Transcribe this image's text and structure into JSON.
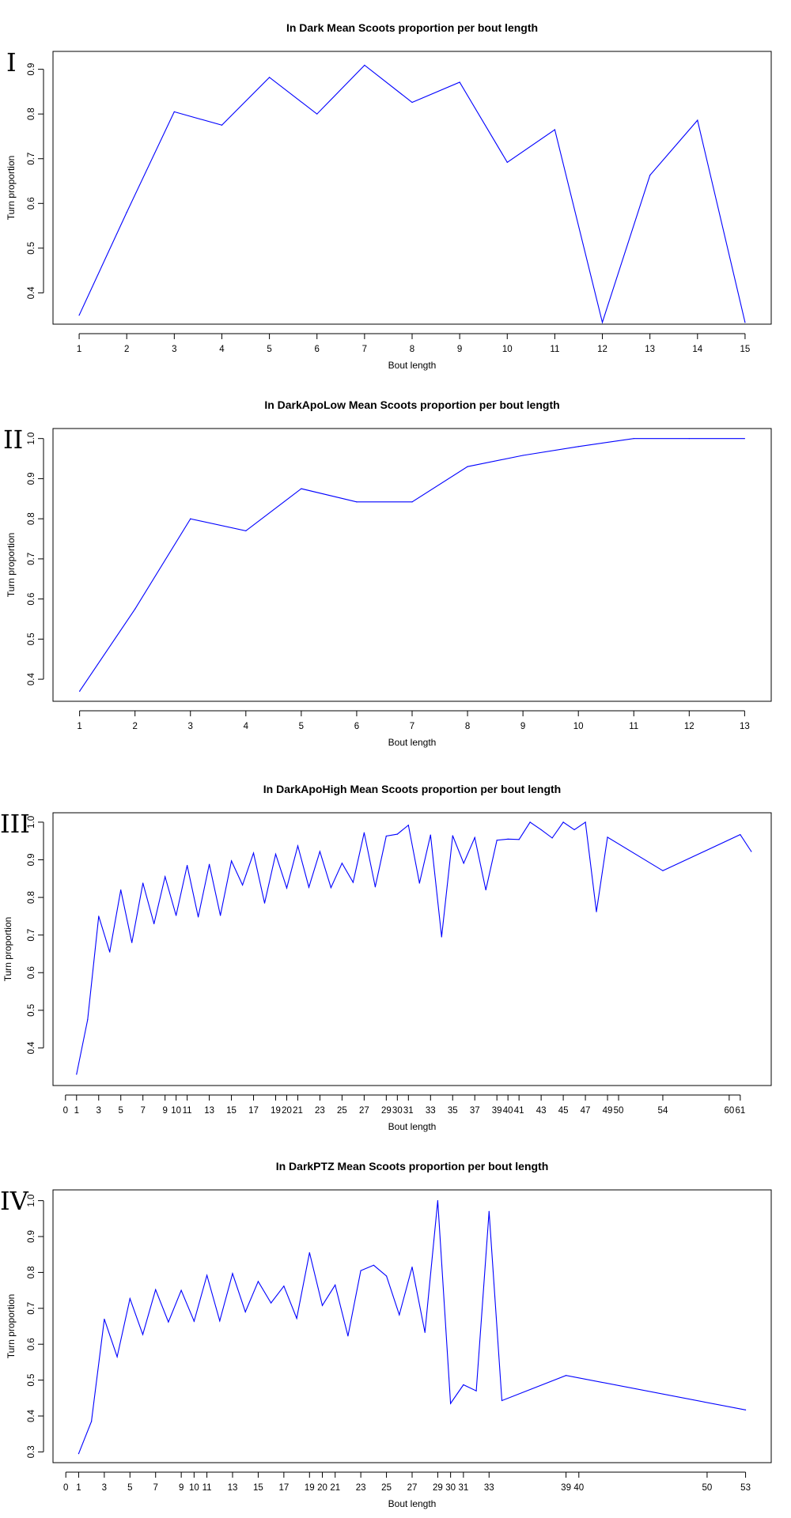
{
  "chart_data": [
    {
      "type": "line",
      "panel_label": "I",
      "title": "In Dark Mean Scoots proportion per bout length",
      "xlabel": "Bout length",
      "ylabel": "Turn proportion",
      "color": "#0000FF",
      "xlim": [
        0.45,
        15.55
      ],
      "ylim": [
        0.33,
        0.94
      ],
      "xticks": [
        1,
        2,
        3,
        4,
        5,
        6,
        7,
        8,
        9,
        10,
        11,
        12,
        13,
        14,
        15
      ],
      "yticks": [
        0.4,
        0.5,
        0.6,
        0.7,
        0.8,
        0.9
      ],
      "x": [
        1,
        2,
        3,
        4,
        5,
        6,
        7,
        8,
        9,
        10,
        11,
        12,
        13,
        14,
        15
      ],
      "y": [
        0.35,
        0.58,
        0.805,
        0.775,
        0.882,
        0.8,
        0.909,
        0.826,
        0.871,
        0.692,
        0.765,
        0.334,
        0.663,
        0.786,
        0.334
      ]
    },
    {
      "type": "line",
      "panel_label": "II",
      "title": "In DarkApoLow Mean Scoots proportion per bout length",
      "xlabel": "Bout length",
      "ylabel": "Turn proportion",
      "color": "#0000FF",
      "xlim": [
        0.52,
        13.48
      ],
      "ylim": [
        0.345,
        1.025
      ],
      "xticks": [
        1,
        2,
        3,
        4,
        5,
        6,
        7,
        8,
        9,
        10,
        11,
        12,
        13
      ],
      "yticks": [
        0.4,
        0.5,
        0.6,
        0.7,
        0.8,
        0.9,
        1.0
      ],
      "x": [
        1,
        2,
        3,
        4,
        5,
        6,
        7,
        8,
        9,
        10,
        11,
        12,
        13
      ],
      "y": [
        0.37,
        0.575,
        0.8,
        0.77,
        0.875,
        0.842,
        0.842,
        0.93,
        0.958,
        0.98,
        1.0,
        1.0,
        1.0
      ]
    },
    {
      "type": "line",
      "panel_label": "III",
      "title": "In DarkApoHigh Mean Scoots proportion per bout length",
      "xlabel": "Bout length",
      "ylabel": "Turn proportion",
      "color": "#0000FF",
      "xlim": [
        -1.13,
        63.8
      ],
      "ylim": [
        0.3,
        1.025
      ],
      "xticks": [
        0,
        1,
        3,
        5,
        7,
        9,
        10,
        11,
        13,
        15,
        17,
        19,
        20,
        21,
        23,
        25,
        27,
        29,
        30,
        31,
        33,
        35,
        37,
        39,
        40,
        41,
        43,
        45,
        47,
        49,
        50,
        54,
        60,
        61
      ],
      "xtick_labels": [
        "0",
        "1",
        "3",
        "5",
        "7",
        "9",
        "10",
        "11",
        "13",
        "15",
        "17",
        "19",
        "20",
        "21",
        "23",
        "25",
        "27",
        "29",
        "30",
        "31",
        "33",
        "35",
        "37",
        "39",
        "40",
        "41",
        "43",
        "45",
        "47",
        "49",
        "50",
        "54",
        "60",
        "61"
      ],
      "yticks": [
        0.4,
        0.5,
        0.6,
        0.7,
        0.8,
        0.9,
        1.0
      ],
      "x": [
        1,
        2,
        3,
        4,
        5,
        6,
        7,
        8,
        9,
        10,
        11,
        12,
        13,
        14,
        15,
        16,
        17,
        18,
        19,
        20,
        21,
        22,
        23,
        24,
        25,
        26,
        27,
        28,
        29,
        30,
        31,
        32,
        33,
        34,
        35,
        36,
        37,
        38,
        39,
        40,
        41,
        42,
        43,
        44,
        45,
        46,
        47,
        48,
        49,
        54,
        61,
        62
      ],
      "y": [
        0.33,
        0.475,
        0.75,
        0.655,
        0.82,
        0.68,
        0.838,
        0.73,
        0.855,
        0.752,
        0.885,
        0.748,
        0.888,
        0.752,
        0.897,
        0.833,
        0.918,
        0.785,
        0.915,
        0.825,
        0.937,
        0.827,
        0.922,
        0.826,
        0.891,
        0.84,
        0.972,
        0.828,
        0.963,
        0.968,
        0.992,
        0.838,
        0.966,
        0.695,
        0.964,
        0.891,
        0.959,
        0.82,
        0.952,
        0.955,
        0.954,
        1.0,
        0.98,
        0.958,
        1.0,
        0.98,
        1.0,
        0.762,
        0.96,
        0.871,
        0.967,
        0.922
      ]
    },
    {
      "type": "line",
      "panel_label": "IV",
      "title": "In DarkPTZ Mean Scoots proportion per bout length",
      "xlabel": "Bout length",
      "ylabel": "Turn proportion",
      "color": "#0000FF",
      "xlim": [
        -1.0,
        55.0
      ],
      "ylim": [
        0.27,
        1.03
      ],
      "xticks": [
        0,
        1,
        3,
        5,
        7,
        9,
        10,
        11,
        13,
        15,
        17,
        19,
        20,
        21,
        23,
        25,
        27,
        29,
        30,
        31,
        33,
        39,
        40,
        50,
        53
      ],
      "xtick_labels": [
        "0",
        "1",
        "3",
        "5",
        "7",
        "9",
        "10",
        "11",
        "13",
        "15",
        "17",
        "19",
        "20",
        "21",
        "23",
        "25",
        "27",
        "29",
        "30",
        "31",
        "33",
        "39",
        "40",
        "50",
        "53"
      ],
      "yticks": [
        0.3,
        0.4,
        0.5,
        0.6,
        0.7,
        0.8,
        0.9,
        1.0
      ],
      "x": [
        1,
        2,
        3,
        4,
        5,
        6,
        7,
        8,
        9,
        10,
        11,
        12,
        13,
        14,
        15,
        16,
        17,
        18,
        19,
        20,
        21,
        22,
        23,
        24,
        25,
        26,
        27,
        28,
        29,
        30,
        31,
        32,
        33,
        34,
        39,
        53
      ],
      "y": [
        0.295,
        0.385,
        0.67,
        0.565,
        0.727,
        0.627,
        0.752,
        0.662,
        0.75,
        0.664,
        0.792,
        0.665,
        0.797,
        0.69,
        0.775,
        0.715,
        0.762,
        0.672,
        0.855,
        0.708,
        0.765,
        0.623,
        0.805,
        0.82,
        0.79,
        0.682,
        0.815,
        0.633,
        1.0,
        0.435,
        0.487,
        0.47,
        0.97,
        0.443,
        0.513,
        0.417
      ]
    }
  ]
}
